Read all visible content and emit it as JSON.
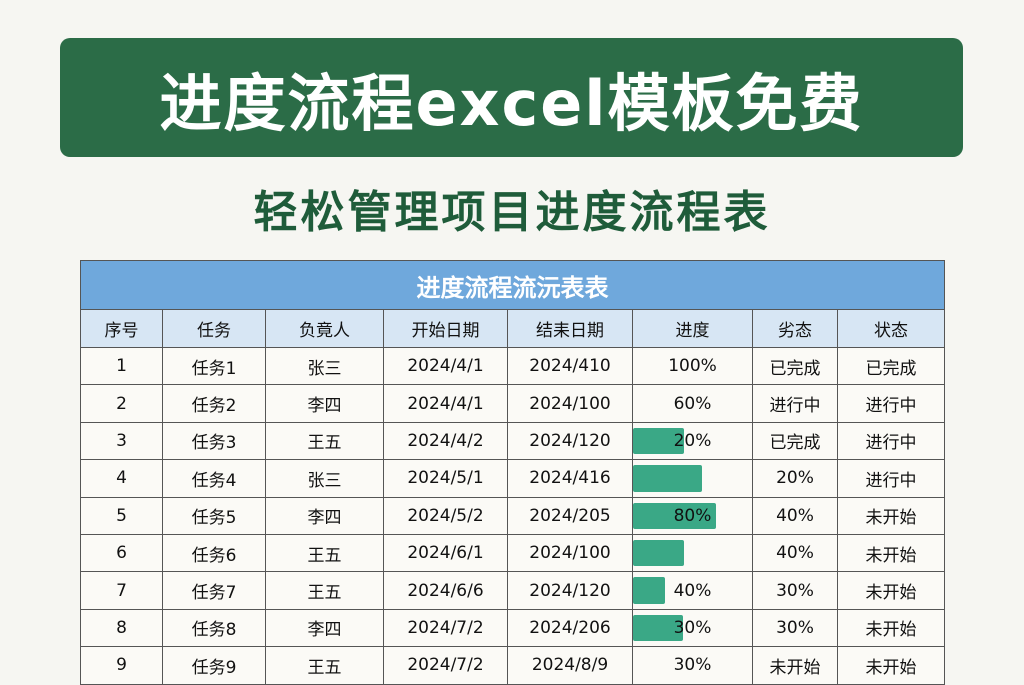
{
  "banner": {
    "title": "进度流程excel模板免费"
  },
  "subtitle": "轻松管理项目进度流程表",
  "table": {
    "title": "进度流程流沅表表",
    "headers": [
      "序号",
      "任务",
      "负竟人",
      "开始日期",
      "结耒日期",
      "进度",
      "劣态",
      "状态"
    ],
    "accent": "#3aa886",
    "rows": [
      {
        "cells": [
          "1",
          "任务1",
          "张三",
          "2024/4/1",
          "2024/410",
          "100%",
          "已完成",
          "已完成"
        ],
        "bar": 0
      },
      {
        "cells": [
          "2",
          "任务2",
          "李四",
          "2024/4/1",
          "2024/100",
          "60%",
          "进行中",
          "进行中"
        ],
        "bar": 0
      },
      {
        "cells": [
          "3",
          "任务3",
          "王五",
          "2024/4/2",
          "2024/120",
          "20%",
          "已完成",
          "进行中"
        ],
        "bar": 0.43
      },
      {
        "cells": [
          "4",
          "任务4",
          "张三",
          "2024/5/1",
          "2024/416",
          "",
          "20%",
          "进行中"
        ],
        "bar": 0.58
      },
      {
        "cells": [
          "5",
          "任务5",
          "李四",
          "2024/5/2",
          "2024/205",
          "80%",
          "40%",
          "未开始"
        ],
        "bar": 0.7
      },
      {
        "cells": [
          "6",
          "任务6",
          "王五",
          "2024/6/1",
          "2024/100",
          "",
          "40%",
          "未开始"
        ],
        "bar": 0.43
      },
      {
        "cells": [
          "7",
          "任务7",
          "王五",
          "2024/6/6",
          "2024/120",
          "40%",
          "30%",
          "未开始"
        ],
        "bar": 0.27
      },
      {
        "cells": [
          "8",
          "任务8",
          "李四",
          "2024/7/2",
          "2024/206",
          "30%",
          "30%",
          "未开始"
        ],
        "bar": 0.42
      },
      {
        "cells": [
          "9",
          "任务9",
          "王五",
          "2024/7/2",
          "2024/8/9",
          "30%",
          "未开始",
          "未开始"
        ],
        "bar": 0
      }
    ]
  }
}
